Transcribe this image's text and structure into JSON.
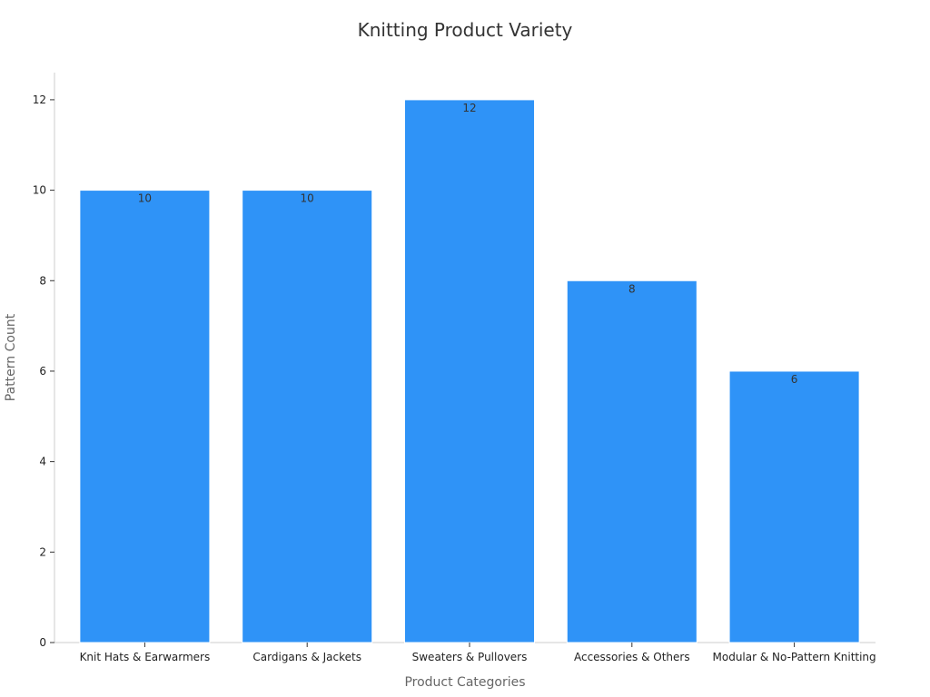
{
  "chart_data": {
    "type": "bar",
    "title": "Knitting Product Variety",
    "xlabel": "Product Categories",
    "ylabel": "Pattern Count",
    "categories": [
      "Knit Hats & Earwarmers",
      "Cardigans & Jackets",
      "Sweaters & Pullovers",
      "Accessories & Others",
      "Modular & No-Pattern Knitting"
    ],
    "values": [
      10,
      10,
      12,
      8,
      6
    ],
    "ylim": [
      0,
      12.6
    ],
    "yticks": [
      0,
      2,
      4,
      6,
      8,
      10,
      12
    ],
    "grid": false,
    "bar_color": "#2f93f7"
  }
}
